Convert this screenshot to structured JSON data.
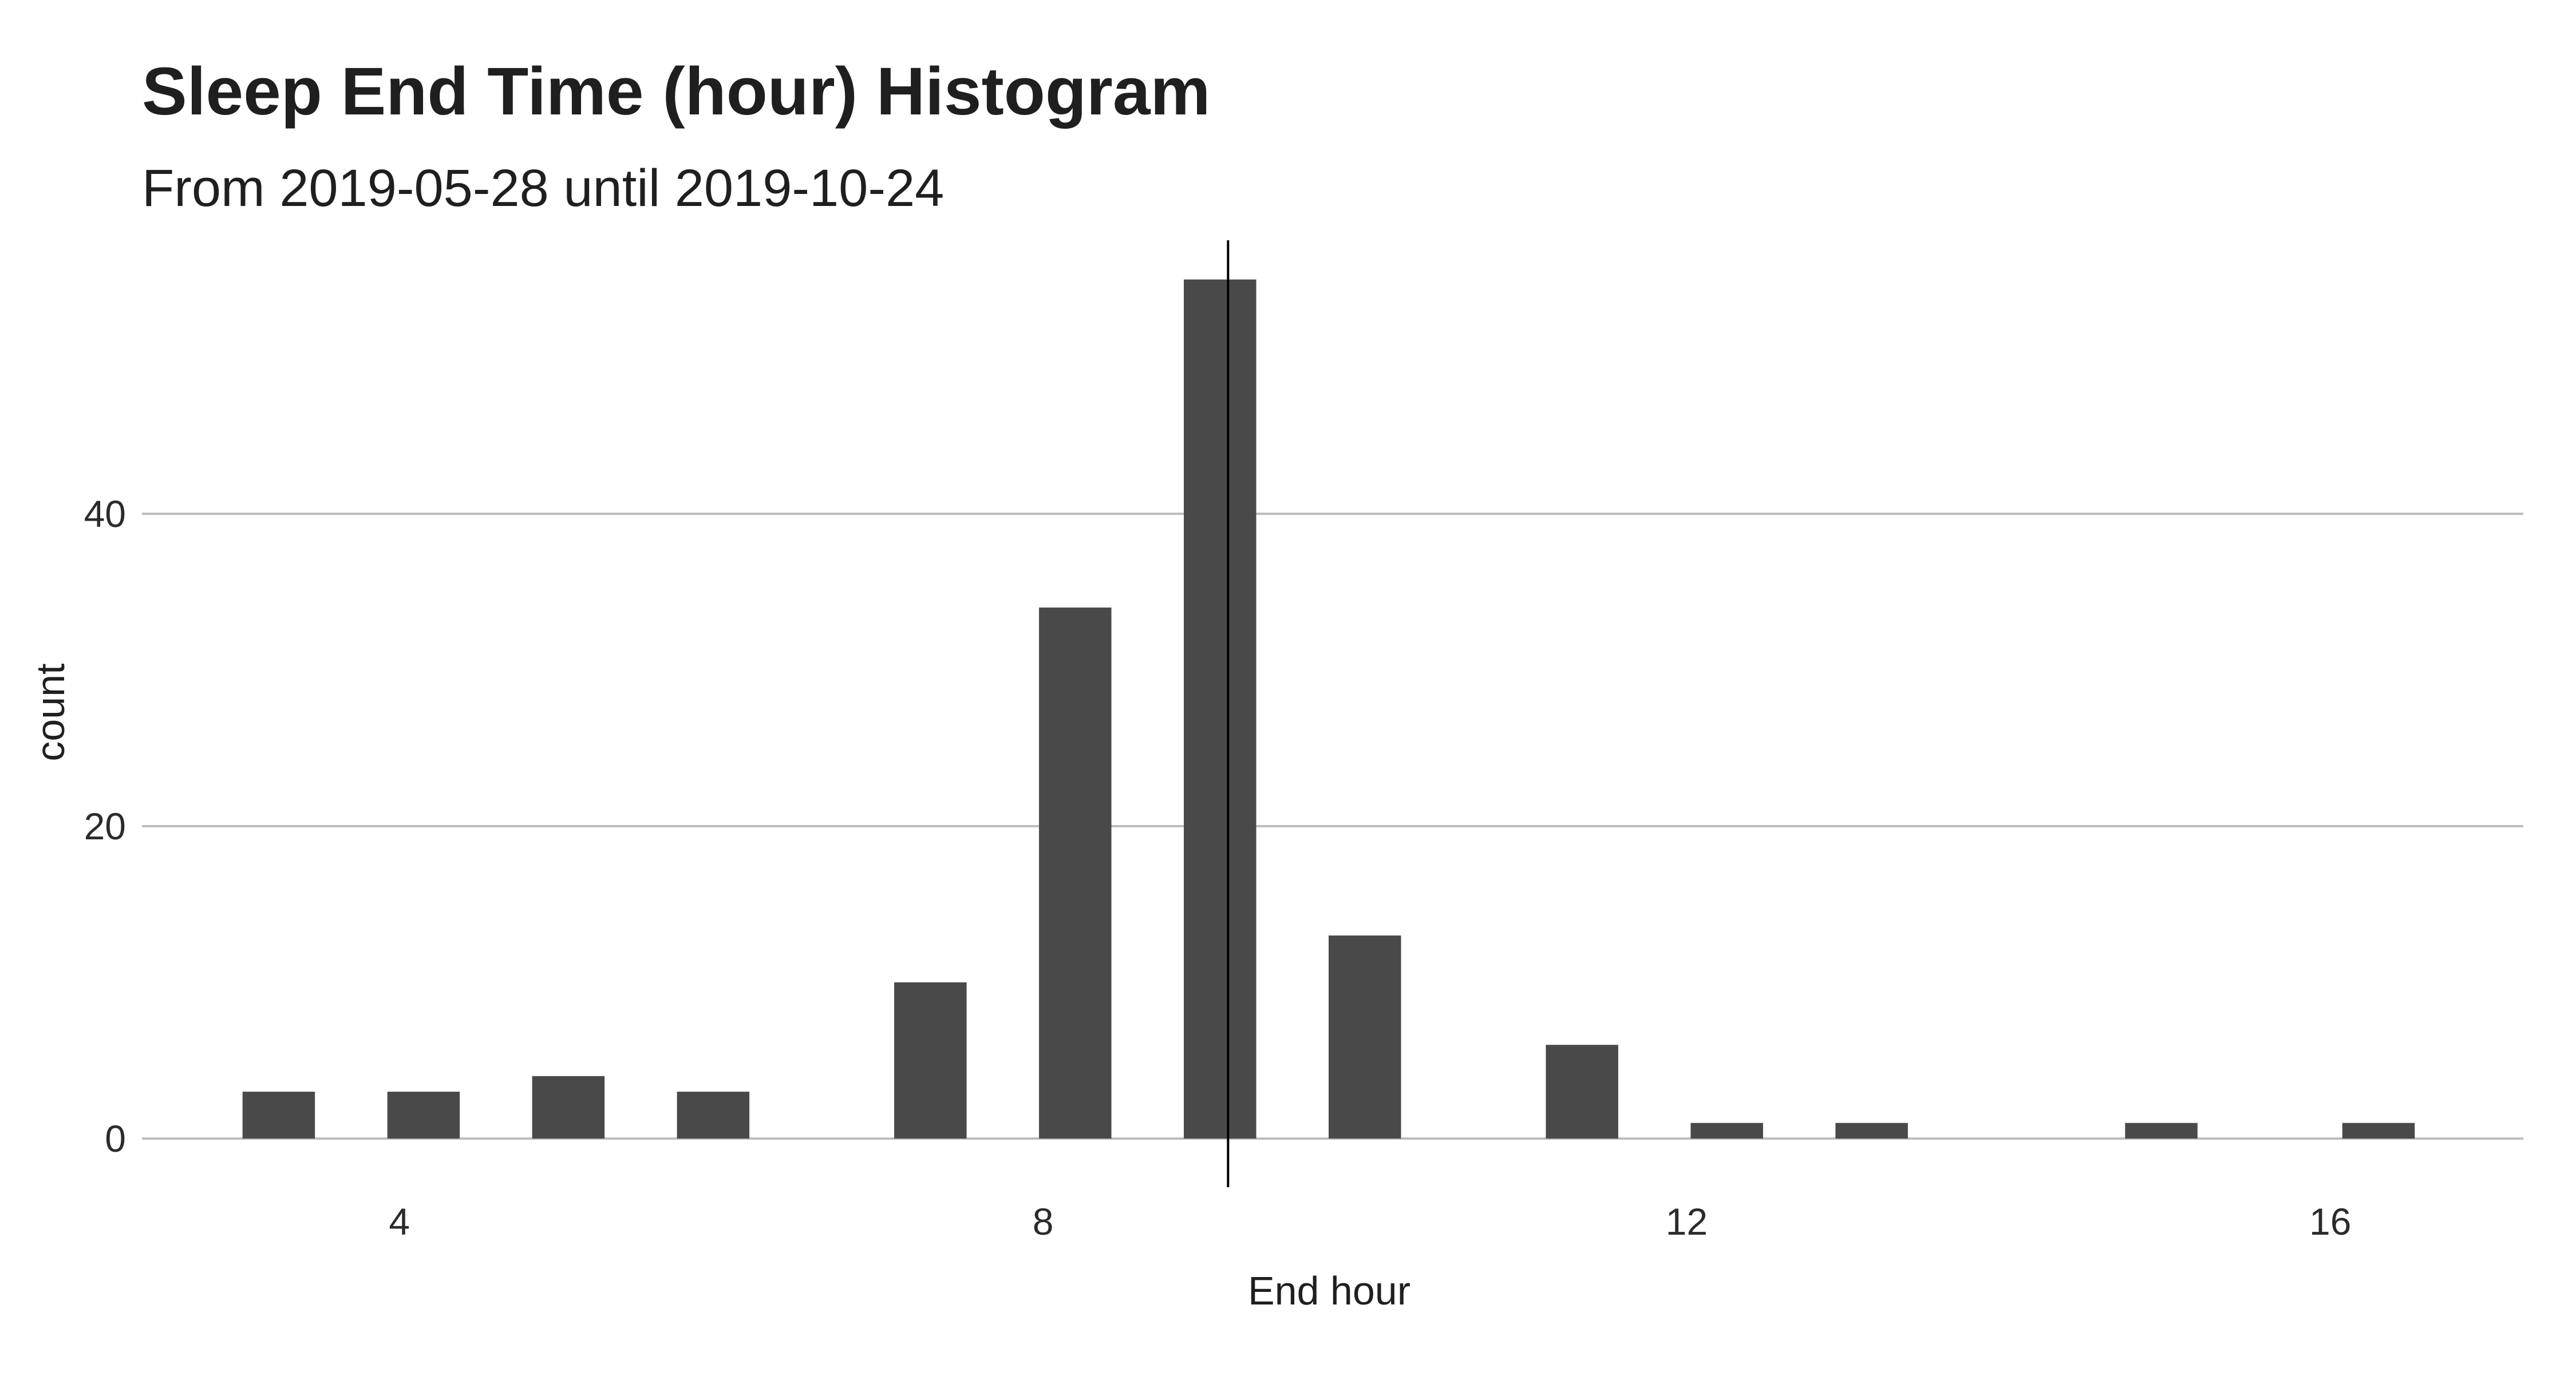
{
  "chart_data": {
    "type": "bar",
    "title": "Sleep End Time (hour) Histogram",
    "subtitle": "From 2019-05-28 until 2019-10-24",
    "xlabel": "End hour",
    "ylabel": "count",
    "x": [
      3.25,
      4.15,
      5.05,
      5.95,
      7.3,
      8.2,
      9.1,
      10.0,
      11.35,
      12.25,
      13.15,
      14.95,
      16.3
    ],
    "values": [
      3,
      3,
      4,
      3,
      10,
      34,
      55,
      13,
      6,
      1,
      1,
      1,
      1
    ],
    "bin_width": 0.45,
    "xlim": [
      2.4,
      17.2
    ],
    "ylim": [
      0,
      58
    ],
    "x_ticks": [
      4,
      8,
      12,
      16
    ],
    "y_ticks": [
      0,
      20,
      40
    ],
    "reference_line_x": 9.15,
    "grid": "horizontal",
    "legend": "none",
    "bar_color": "#494949",
    "grid_color": "#bdbdbd",
    "reference_line_color": "#000000"
  }
}
